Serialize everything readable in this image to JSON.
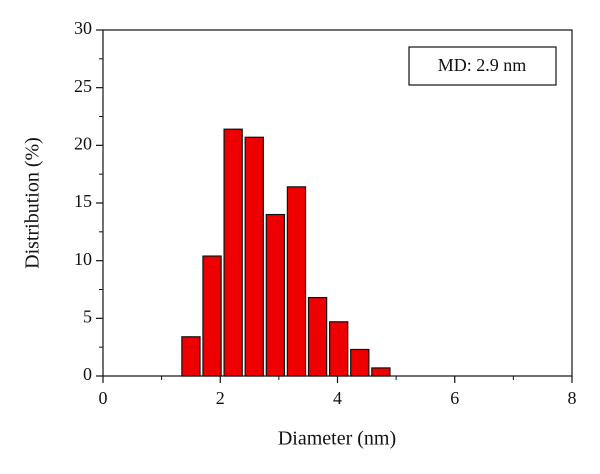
{
  "chart_data": {
    "type": "bar",
    "x_label": "Diameter (nm)",
    "y_label": "Distribution (%)",
    "annotation": "MD: 2.9 nm",
    "x": [
      1.5,
      1.86,
      2.22,
      2.58,
      2.94,
      3.3,
      3.66,
      4.02,
      4.38,
      4.74
    ],
    "values": [
      3.4,
      10.4,
      21.4,
      20.7,
      14.0,
      16.4,
      6.8,
      4.7,
      2.3,
      0.7
    ],
    "color": "#ee0000",
    "xlim": [
      0,
      8
    ],
    "xticks": [
      0,
      2,
      4,
      6,
      8
    ],
    "xminorticks": [
      1,
      3,
      5,
      7
    ],
    "ylim": [
      0,
      30
    ],
    "yticks": [
      0,
      5,
      10,
      15,
      20,
      25,
      30
    ],
    "yminorticks": [
      2.5,
      7.5,
      12.5,
      17.5,
      22.5,
      27.5
    ]
  }
}
